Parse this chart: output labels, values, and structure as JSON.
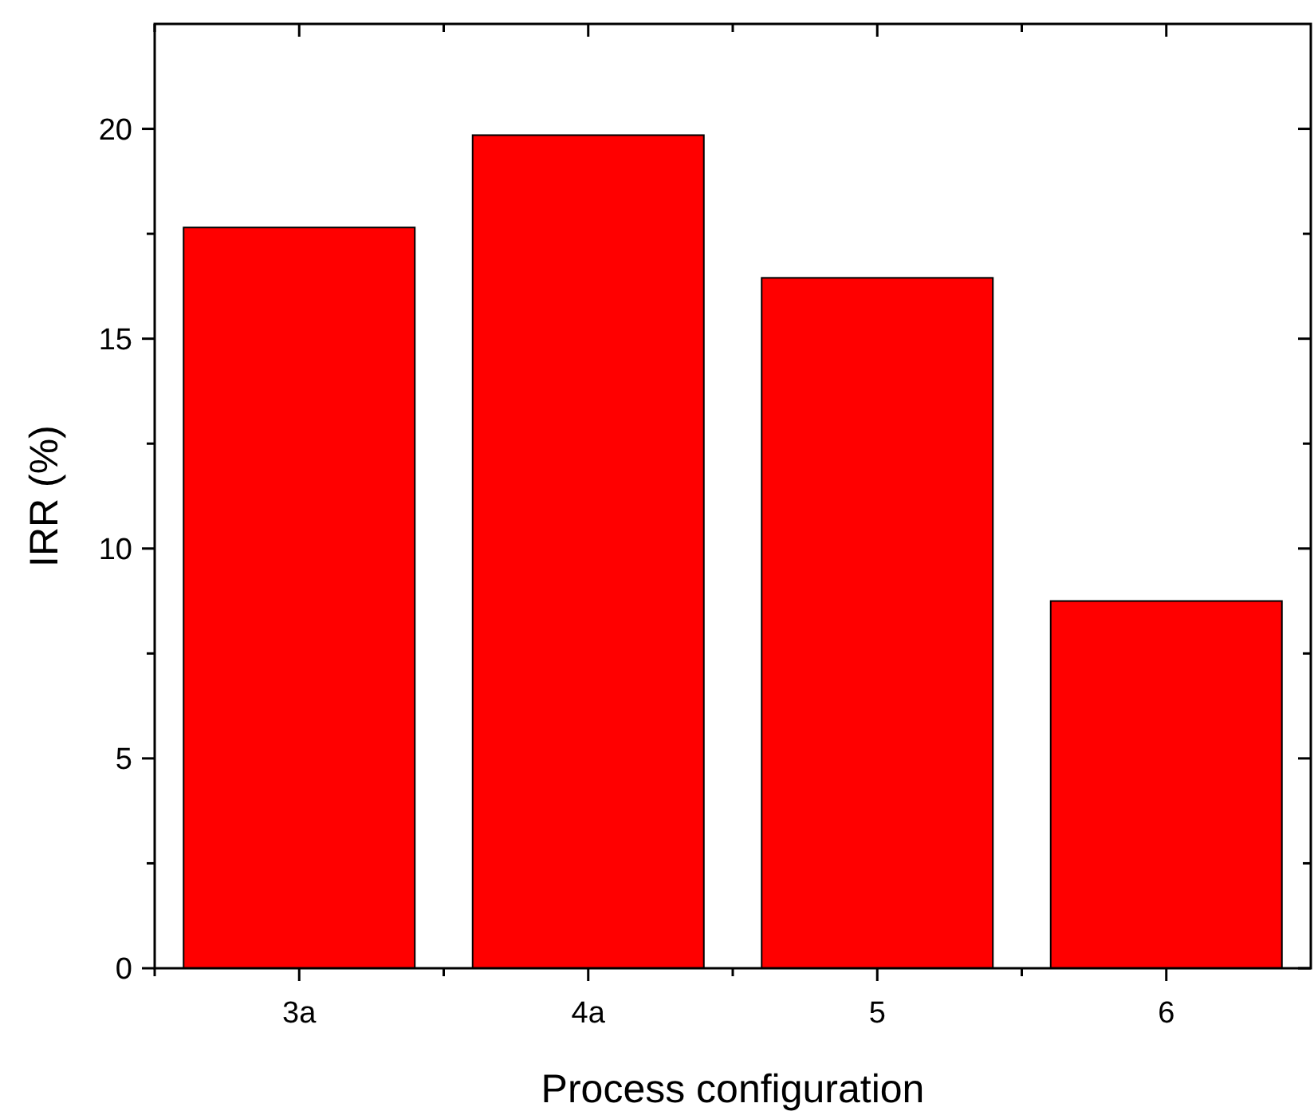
{
  "chart_data": {
    "type": "bar",
    "xlabel": "Process configuration",
    "ylabel": "IRR (%)",
    "categories": [
      "3a",
      "4a",
      "5",
      "6"
    ],
    "values": [
      17.65,
      19.85,
      16.45,
      8.75
    ],
    "color": "#ff0000",
    "ylim": [
      0,
      22.5
    ],
    "yticks": [
      0,
      5,
      10,
      15,
      20
    ],
    "grid": false
  }
}
